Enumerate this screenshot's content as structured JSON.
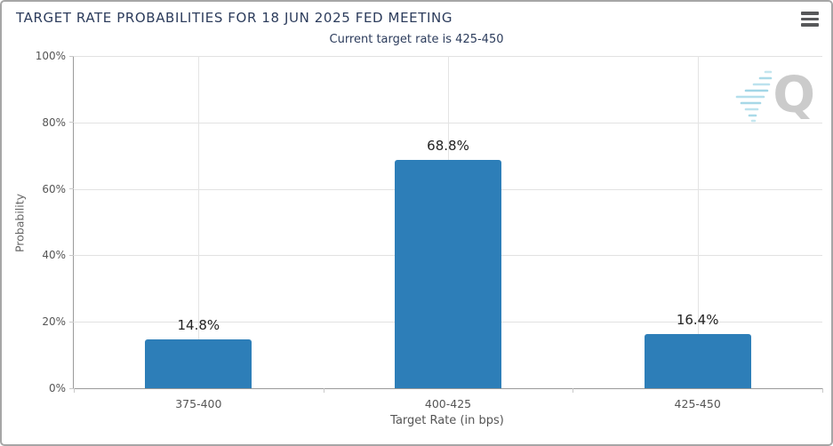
{
  "chart_data": {
    "type": "bar",
    "title": "TARGET RATE PROBABILITIES FOR 18 JUN 2025 FED MEETING",
    "subtitle": "Current target rate is 425-450",
    "categories": [
      "375-400",
      "400-425",
      "425-450"
    ],
    "values": [
      14.8,
      68.8,
      16.4
    ],
    "value_labels": [
      "14.8%",
      "68.8%",
      "16.4%"
    ],
    "xlabel": "Target Rate (in bps)",
    "ylabel": "Probability",
    "ylim": [
      0,
      100
    ],
    "ytick_interval": 20,
    "ytick_labels": [
      "0%",
      "20%",
      "40%",
      "60%",
      "80%",
      "100%"
    ],
    "grid": true,
    "legend": "none",
    "bar_color": "#2d7eb8"
  },
  "icons": {
    "menu": "hamburger-icon",
    "watermark": "quikstrike-q-logo"
  },
  "watermark": {
    "letter": "Q"
  },
  "colors": {
    "title": "#2c3c5c",
    "bar": "#2d7eb8",
    "axis_label": "#555555",
    "gridline": "#e2e2e2"
  }
}
